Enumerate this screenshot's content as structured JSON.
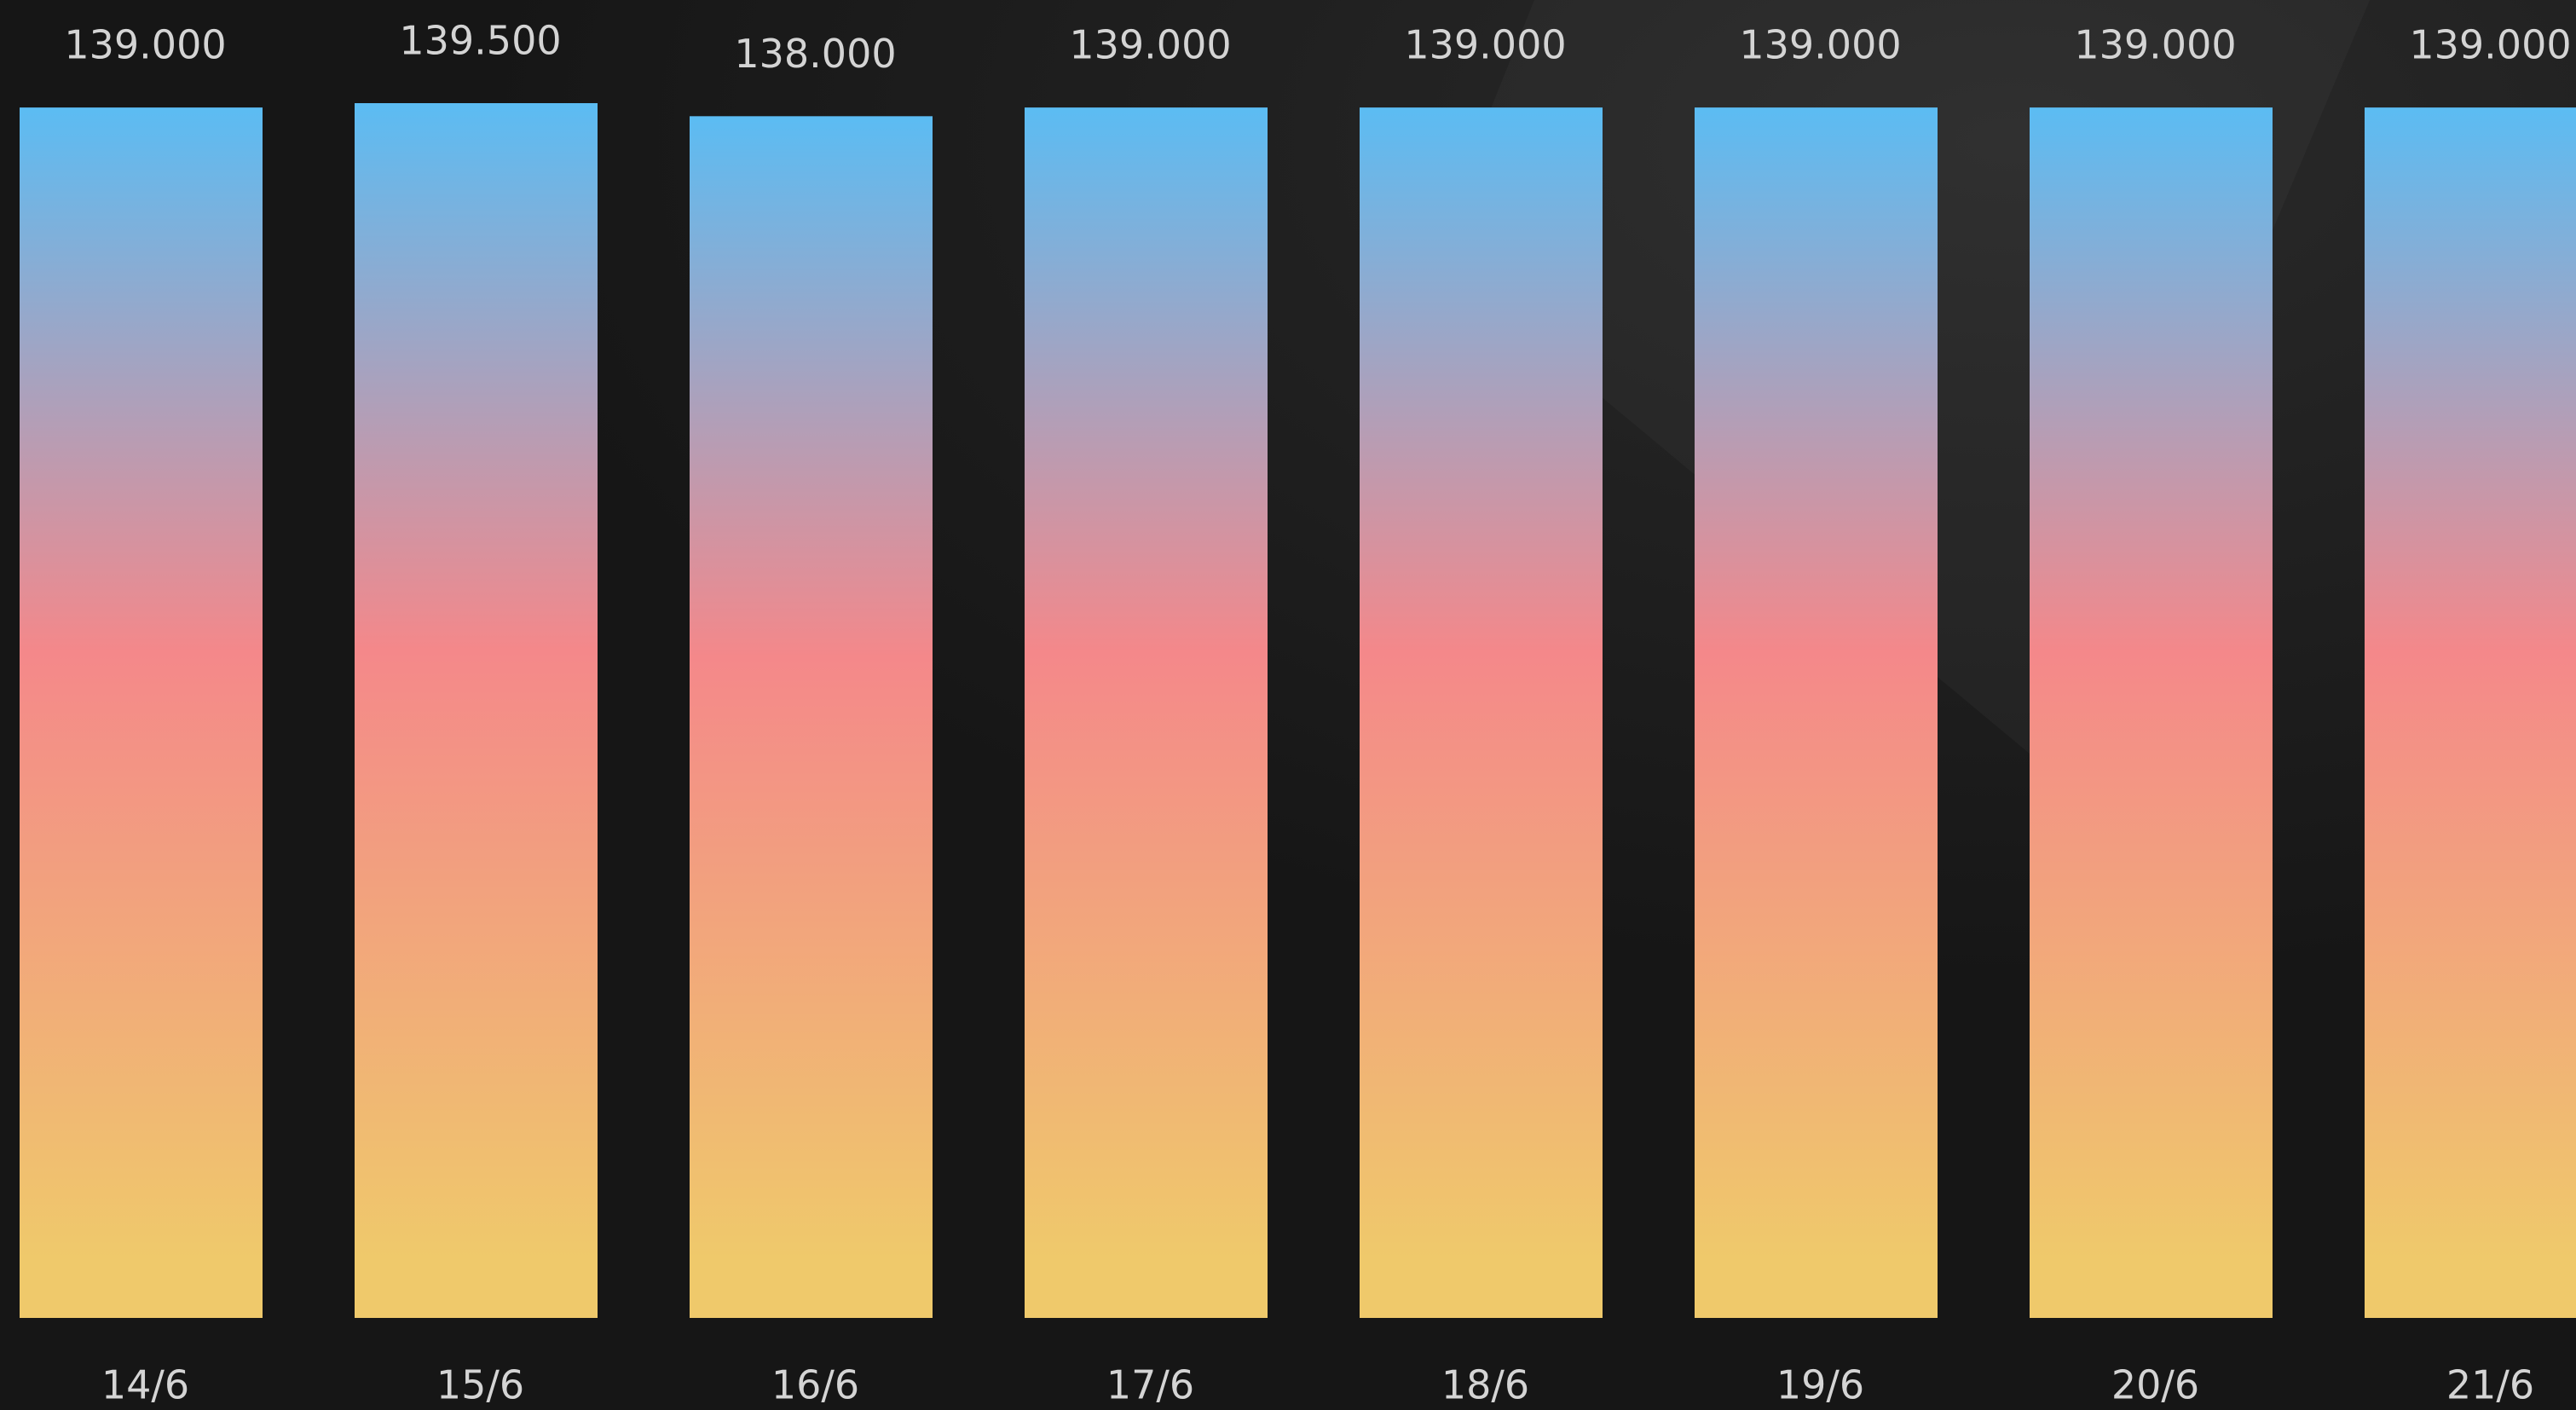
{
  "chart_data": {
    "type": "bar",
    "categories": [
      "14/6",
      "15/6",
      "16/6",
      "17/6",
      "18/6",
      "19/6",
      "20/6",
      "21/6"
    ],
    "values": [
      139000,
      139500,
      138000,
      139000,
      139000,
      139000,
      139000,
      139000
    ],
    "value_labels": [
      "139.000",
      "139.500",
      "138.000",
      "139.000",
      "139.000",
      "139.000",
      "139.000",
      "139.000"
    ],
    "colors": [
      "#5bbcf3",
      "#f4888a",
      "#efc96b"
    ]
  }
}
